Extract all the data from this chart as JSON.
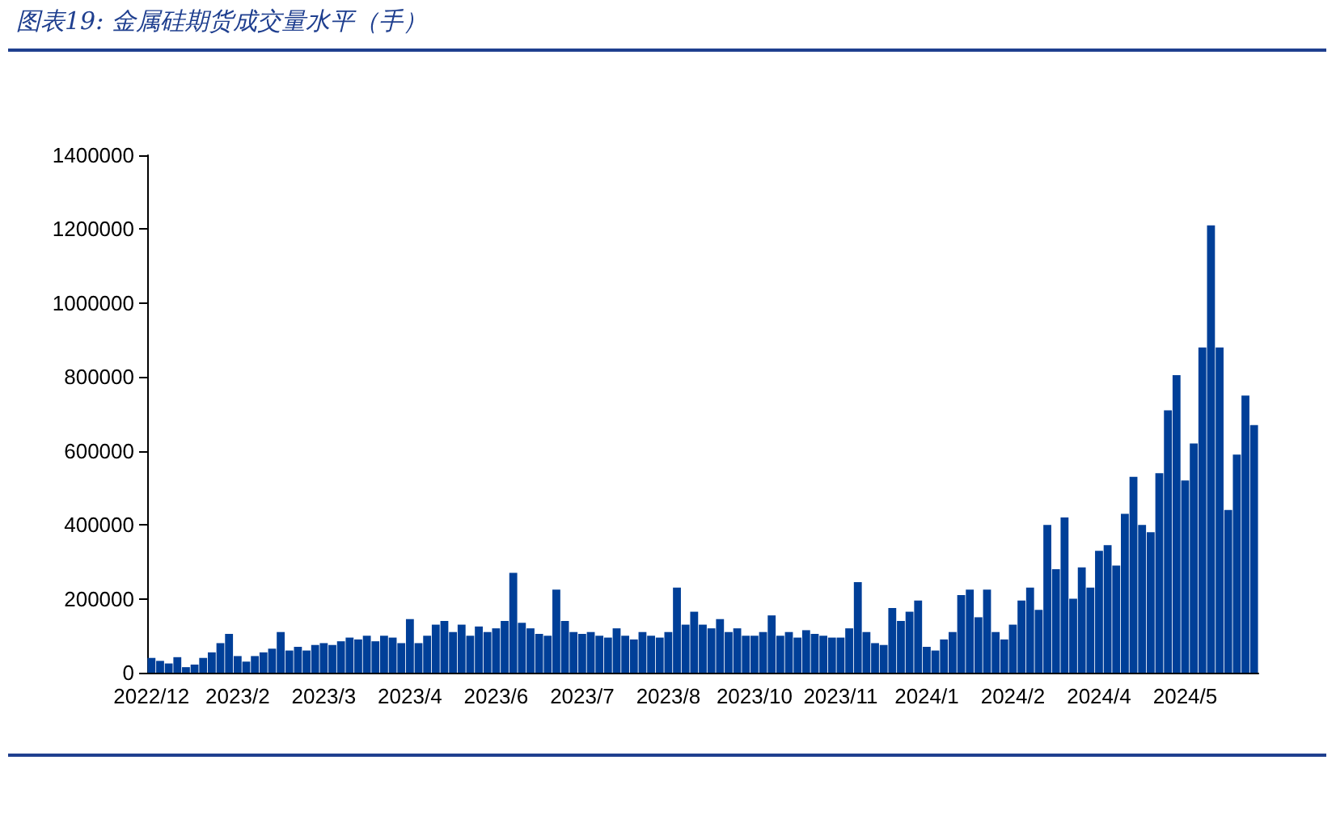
{
  "chart_data": {
    "type": "bar",
    "title": "图表19:  金属硅期货成交量水平（手）",
    "categories": [
      "2022/12",
      null,
      null,
      null,
      null,
      null,
      null,
      null,
      null,
      null,
      "2023/2",
      null,
      null,
      null,
      null,
      null,
      null,
      null,
      null,
      null,
      "2023/3",
      null,
      null,
      null,
      null,
      null,
      null,
      null,
      null,
      null,
      "2023/4",
      null,
      null,
      null,
      null,
      null,
      null,
      null,
      null,
      null,
      "2023/6",
      null,
      null,
      null,
      null,
      null,
      null,
      null,
      null,
      null,
      "2023/7",
      null,
      null,
      null,
      null,
      null,
      null,
      null,
      null,
      null,
      "2023/8",
      null,
      null,
      null,
      null,
      null,
      null,
      null,
      null,
      null,
      "2023/10",
      null,
      null,
      null,
      null,
      null,
      null,
      null,
      null,
      null,
      "2023/11",
      null,
      null,
      null,
      null,
      null,
      null,
      null,
      null,
      null,
      "2024/1",
      null,
      null,
      null,
      null,
      null,
      null,
      null,
      null,
      null,
      "2024/2",
      null,
      null,
      null,
      null,
      null,
      null,
      null,
      null,
      null,
      "2024/4",
      null,
      null,
      null,
      null,
      null,
      null,
      null,
      null,
      null,
      "2024/5",
      null,
      null,
      null,
      null,
      null,
      null,
      null,
      null
    ],
    "values": [
      40000,
      32000,
      25000,
      42000,
      15000,
      22000,
      40000,
      55000,
      80000,
      105000,
      45000,
      30000,
      45000,
      55000,
      65000,
      110000,
      60000,
      70000,
      60000,
      75000,
      80000,
      75000,
      85000,
      95000,
      90000,
      100000,
      85000,
      100000,
      95000,
      80000,
      145000,
      80000,
      100000,
      130000,
      140000,
      110000,
      130000,
      100000,
      125000,
      110000,
      120000,
      140000,
      270000,
      135000,
      120000,
      105000,
      100000,
      225000,
      140000,
      110000,
      105000,
      110000,
      100000,
      95000,
      120000,
      100000,
      90000,
      110000,
      100000,
      95000,
      110000,
      230000,
      130000,
      165000,
      130000,
      120000,
      145000,
      110000,
      120000,
      100000,
      100000,
      110000,
      155000,
      100000,
      110000,
      95000,
      115000,
      105000,
      100000,
      95000,
      95000,
      120000,
      245000,
      110000,
      80000,
      75000,
      175000,
      140000,
      165000,
      195000,
      70000,
      60000,
      90000,
      110000,
      210000,
      225000,
      150000,
      225000,
      110000,
      90000,
      130000,
      195000,
      230000,
      170000,
      400000,
      280000,
      420000,
      200000,
      285000,
      230000,
      330000,
      345000,
      290000,
      430000,
      530000,
      400000,
      380000,
      540000,
      710000,
      805000,
      520000,
      620000,
      880000,
      1210000,
      880000,
      440000,
      590000,
      750000,
      670000
    ],
    "color": "#003f98",
    "ylim": [
      0,
      1400000
    ],
    "yticks": [
      0,
      200000,
      400000,
      600000,
      800000,
      1000000,
      1200000,
      1400000
    ],
    "grid": false
  }
}
